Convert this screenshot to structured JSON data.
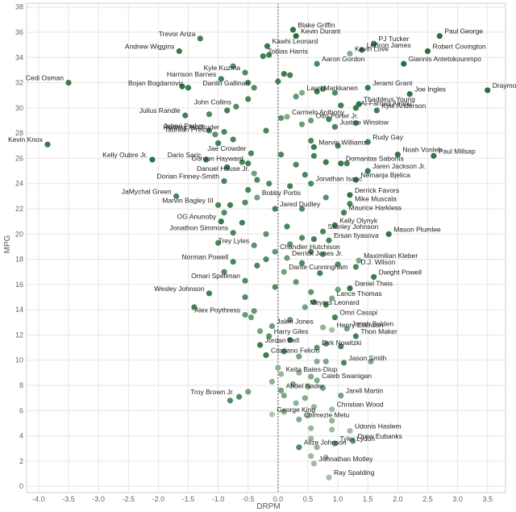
{
  "chart_data": {
    "type": "scatter",
    "title": "",
    "xlabel": "DRPM",
    "ylabel": "MPG",
    "xlim": [
      -4.2,
      3.8
    ],
    "ylim": [
      -0.5,
      38.3
    ],
    "xticks": [
      -4.0,
      -3.5,
      -3.0,
      -2.5,
      -2.0,
      -1.5,
      -1.0,
      -0.5,
      0.0,
      0.5,
      1.0,
      1.5,
      2.0,
      2.5,
      3.0,
      3.5
    ],
    "yticks": [
      0,
      2,
      4,
      6,
      8,
      10,
      12,
      14,
      16,
      18,
      20,
      22,
      24,
      26,
      28,
      30,
      32,
      34,
      36,
      38
    ],
    "xtick_labels": [
      "-4.0",
      "-3.5",
      "-3.0",
      "-2.5",
      "-2.0",
      "-1.5",
      "-1.0",
      "-0.5",
      "0.0",
      "0.5",
      "1.0",
      "1.5",
      "2.0",
      "2.5",
      "3.0",
      "3.5"
    ],
    "ytick_labels": [
      "0",
      "2",
      "4",
      "6",
      "8",
      "10",
      "12",
      "14",
      "16",
      "18",
      "20",
      "22",
      "24",
      "26",
      "28",
      "30",
      "32",
      "34",
      "36",
      "38"
    ],
    "grid": true,
    "color_scale": {
      "low": "#c8d8c0",
      "high": "#1e6a38"
    },
    "labeled_points": [
      {
        "name": "Blake Griffin",
        "x": 0.25,
        "y": 36.2,
        "c": 0.9
      },
      {
        "name": "Kevin Durant",
        "x": 0.3,
        "y": 35.7,
        "c": 0.95
      },
      {
        "name": "PJ Tucker",
        "x": 1.6,
        "y": 35.1,
        "c": 0.85
      },
      {
        "name": "Paul George",
        "x": 2.7,
        "y": 35.7,
        "c": 0.95
      },
      {
        "name": "Trevor Ariza",
        "x": -1.3,
        "y": 35.5,
        "c": 0.8
      },
      {
        "name": "Kawhi Leonard",
        "x": -0.18,
        "y": 34.9,
        "c": 0.85
      },
      {
        "name": "Kevin Love",
        "x": 1.2,
        "y": 34.3,
        "c": 0.4
      },
      {
        "name": "LeBron James",
        "x": 1.4,
        "y": 34.6,
        "c": 0.9
      },
      {
        "name": "Robert Covington",
        "x": 2.5,
        "y": 34.5,
        "c": 0.95
      },
      {
        "name": "Andrew Wiggins",
        "x": -1.65,
        "y": 34.5,
        "c": 0.85
      },
      {
        "name": "Tobias Harris",
        "x": -0.25,
        "y": 34.1,
        "c": 0.8
      },
      {
        "name": "Giannis Antetokounmpo",
        "x": 2.1,
        "y": 33.5,
        "c": 0.95
      },
      {
        "name": "Aaron Gordon",
        "x": 0.65,
        "y": 33.5,
        "c": 0.75
      },
      {
        "name": "Kyle Kuzma",
        "x": -0.55,
        "y": 32.8,
        "c": 0.7
      },
      {
        "name": "Draymond Green",
        "x": 3.5,
        "y": 31.4,
        "c": 0.95
      },
      {
        "name": "Cedi Osman",
        "x": -3.5,
        "y": 32.0,
        "c": 0.85
      },
      {
        "name": "Harrison Barnes",
        "x": -0.95,
        "y": 32.3,
        "c": 0.8
      },
      {
        "name": "Lauri Markkanen",
        "x": 0.4,
        "y": 31.2,
        "c": 0.4
      },
      {
        "name": "Bojan Bogdanovic",
        "x": -1.5,
        "y": 31.6,
        "c": 0.85
      },
      {
        "name": "Danilo Gallinari",
        "x": -0.4,
        "y": 31.6,
        "c": 0.7
      },
      {
        "name": "Jerami Grant",
        "x": 1.5,
        "y": 31.6,
        "c": 0.85
      },
      {
        "name": "Joe Ingles",
        "x": 2.2,
        "y": 31.1,
        "c": 0.9
      },
      {
        "name": "Thaddeus Young",
        "x": 1.35,
        "y": 30.3,
        "c": 0.9
      },
      {
        "name": "John Collins",
        "x": -0.7,
        "y": 30.1,
        "c": 0.7
      },
      {
        "name": "Al-Farouq Aminu",
        "x": 1.3,
        "y": 30.0,
        "c": 0.85
      },
      {
        "name": "Kyle Anderson",
        "x": 1.65,
        "y": 29.8,
        "c": 0.8
      },
      {
        "name": "Julius Randle",
        "x": -1.55,
        "y": 29.4,
        "c": 0.8
      },
      {
        "name": "Carmelo Anthony",
        "x": 0.15,
        "y": 29.3,
        "c": 0.4
      },
      {
        "name": "Otto Porter Jr.",
        "x": 0.55,
        "y": 29.0,
        "c": 0.55
      },
      {
        "name": "Jabari Parker",
        "x": -1.15,
        "y": 28.2,
        "c": 0.7
      },
      {
        "name": "Rodney McGruder",
        "x": -0.9,
        "y": 28.1,
        "c": 0.75
      },
      {
        "name": "Justise Winslow",
        "x": 0.95,
        "y": 28.5,
        "c": 0.75
      },
      {
        "name": "Taurean Prince",
        "x": -1.05,
        "y": 27.9,
        "c": 0.65
      },
      {
        "name": "Rudy Gay",
        "x": 1.5,
        "y": 27.3,
        "c": 0.8
      },
      {
        "name": "Kevin Knox",
        "x": -3.85,
        "y": 27.1,
        "c": 0.85
      },
      {
        "name": "Noah Vonleh",
        "x": 2.0,
        "y": 26.3,
        "c": 0.9
      },
      {
        "name": "Marvin Williams",
        "x": 0.6,
        "y": 26.9,
        "c": 0.85
      },
      {
        "name": "Jae Crowder",
        "x": -0.45,
        "y": 26.4,
        "c": 0.75
      },
      {
        "name": "Paul Millsap",
        "x": 2.6,
        "y": 26.2,
        "c": 0.9
      },
      {
        "name": "Domantas Sabonis",
        "x": 1.05,
        "y": 25.6,
        "c": 0.85
      },
      {
        "name": "Kelly Oubre Jr.",
        "x": -2.1,
        "y": 25.9,
        "c": 0.9
      },
      {
        "name": "Dario Saric",
        "x": -1.2,
        "y": 25.9,
        "c": 0.8
      },
      {
        "name": "Gordon Hayward",
        "x": -0.5,
        "y": 25.6,
        "c": 0.8
      },
      {
        "name": "Danuel House Jr.",
        "x": -0.4,
        "y": 24.8,
        "c": 0.5
      },
      {
        "name": "Jaren Jackson Jr.",
        "x": 1.5,
        "y": 25.0,
        "c": 0.85
      },
      {
        "name": "Dorian Finney-Smith",
        "x": -0.9,
        "y": 24.2,
        "c": 0.75
      },
      {
        "name": "Nemanja Bjelica",
        "x": 1.3,
        "y": 24.3,
        "c": 0.85
      },
      {
        "name": "Jonathan Isaac",
        "x": 0.55,
        "y": 24.0,
        "c": 0.7
      },
      {
        "name": "JaMychal Green",
        "x": -1.7,
        "y": 23.0,
        "c": 0.75
      },
      {
        "name": "Bobby Portis",
        "x": -0.35,
        "y": 22.9,
        "c": 0.5
      },
      {
        "name": "Derrick Favors",
        "x": 1.2,
        "y": 23.1,
        "c": 0.9
      },
      {
        "name": "Marvin Bagley III",
        "x": -1.0,
        "y": 22.3,
        "c": 0.75
      },
      {
        "name": "Mike Muscala",
        "x": 1.2,
        "y": 22.4,
        "c": 0.75
      },
      {
        "name": "Maurice Harkless",
        "x": 1.1,
        "y": 21.7,
        "c": 0.8
      },
      {
        "name": "Jared Dudley",
        "x": -0.05,
        "y": 22.0,
        "c": 0.8
      },
      {
        "name": "OG Anunoby",
        "x": -0.95,
        "y": 21.0,
        "c": 0.85
      },
      {
        "name": "Kelly Olynyk",
        "x": 0.95,
        "y": 20.7,
        "c": 0.85
      },
      {
        "name": "Jonathon Simmons",
        "x": -0.75,
        "y": 20.1,
        "c": 0.75
      },
      {
        "name": "Stanley Johnson",
        "x": 0.75,
        "y": 20.2,
        "c": 0.75
      },
      {
        "name": "Mason Plumlee",
        "x": 1.85,
        "y": 20.0,
        "c": 0.9
      },
      {
        "name": "Ersan Ilyasova",
        "x": 0.85,
        "y": 19.5,
        "c": 0.75
      },
      {
        "name": "Trey Lyles",
        "x": -0.4,
        "y": 19.1,
        "c": 0.65
      },
      {
        "name": "Chandler Hutchison",
        "x": -0.05,
        "y": 18.6,
        "c": 0.6
      },
      {
        "name": "Maximilian Kleber",
        "x": 1.35,
        "y": 17.9,
        "c": 0.45
      },
      {
        "name": "Norman Powell",
        "x": -0.75,
        "y": 17.8,
        "c": 0.75
      },
      {
        "name": "Derrick Jones Jr.",
        "x": 0.15,
        "y": 18.1,
        "c": 0.55
      },
      {
        "name": "D.J. Wilson",
        "x": 1.3,
        "y": 17.4,
        "c": 0.75
      },
      {
        "name": "Dante Cunningham",
        "x": 0.1,
        "y": 17.0,
        "c": 0.5
      },
      {
        "name": "Dwight Powell",
        "x": 1.6,
        "y": 16.6,
        "c": 0.85
      },
      {
        "name": "Omari Spellman",
        "x": -0.55,
        "y": 16.3,
        "c": 0.7
      },
      {
        "name": "Daniel Theis",
        "x": 1.2,
        "y": 15.7,
        "c": 0.9
      },
      {
        "name": "Wesley Johnson",
        "x": -1.15,
        "y": 15.3,
        "c": 0.8
      },
      {
        "name": "Lance Thomas",
        "x": 0.9,
        "y": 14.9,
        "c": 0.45
      },
      {
        "name": "Meyers Leonard",
        "x": 0.45,
        "y": 14.2,
        "c": 0.5
      },
      {
        "name": "Alex Poythress",
        "x": -0.55,
        "y": 13.6,
        "c": 0.55
      },
      {
        "name": "Omri Casspi",
        "x": 0.95,
        "y": 13.4,
        "c": 0.8
      },
      {
        "name": "Jalen Jones",
        "x": -0.1,
        "y": 12.7,
        "c": 0.55
      },
      {
        "name": "Henry Ellenson",
        "x": 0.9,
        "y": 12.4,
        "c": 0.2
      },
      {
        "name": "Jonah Bolden",
        "x": 1.15,
        "y": 12.5,
        "c": 0.5
      },
      {
        "name": "Harry Giles",
        "x": -0.15,
        "y": 11.9,
        "c": 0.65
      },
      {
        "name": "Thon Maker",
        "x": 1.3,
        "y": 11.9,
        "c": 0.8
      },
      {
        "name": "Jordan Bell",
        "x": -0.3,
        "y": 11.2,
        "c": 0.85
      },
      {
        "name": "Dirk Nowitzki",
        "x": 0.65,
        "y": 11.0,
        "c": 0.6
      },
      {
        "name": "Cristiano Felicio",
        "x": -0.2,
        "y": 10.4,
        "c": 0.85
      },
      {
        "name": "Jason Smith",
        "x": 1.1,
        "y": 9.8,
        "c": 0.75
      },
      {
        "name": "Keita Bates-Diop",
        "x": 0.05,
        "y": 8.9,
        "c": 0.3
      },
      {
        "name": "Caleb Swanigan",
        "x": 0.65,
        "y": 8.4,
        "c": 0.4
      },
      {
        "name": "Abdel Nader",
        "x": 0.05,
        "y": 7.6,
        "c": 0.5
      },
      {
        "name": "Troy Brown Jr.",
        "x": -0.65,
        "y": 7.1,
        "c": 0.7
      },
      {
        "name": "Jarell Martin",
        "x": 1.05,
        "y": 7.2,
        "c": 0.5
      },
      {
        "name": "George King",
        "x": -0.1,
        "y": 5.7,
        "c": 0.15
      },
      {
        "name": "Christian Wood",
        "x": 0.9,
        "y": 6.1,
        "c": 0.25
      },
      {
        "name": "Chimezie Metu",
        "x": 0.35,
        "y": 5.3,
        "c": 0.4
      },
      {
        "name": "Udonis Haslem",
        "x": 1.2,
        "y": 4.4,
        "c": 0.25
      },
      {
        "name": "Drew Eubanks",
        "x": 1.25,
        "y": 3.6,
        "c": 0.65
      },
      {
        "name": "Alize Johnson",
        "x": 0.35,
        "y": 3.1,
        "c": 0.7
      },
      {
        "name": "Tyler Lydon",
        "x": 0.95,
        "y": 3.4,
        "c": 0.65
      },
      {
        "name": "Johnathan Motley",
        "x": 0.6,
        "y": 1.8,
        "c": 0.25
      },
      {
        "name": "Ray Spalding",
        "x": 0.85,
        "y": 0.7,
        "c": 0.2
      }
    ],
    "unlabeled_points": [
      {
        "x": -0.15,
        "y": 34.2,
        "c": 0.8
      },
      {
        "x": -0.75,
        "y": 33.3,
        "c": 0.7
      },
      {
        "x": 0.1,
        "y": 32.7,
        "c": 0.85
      },
      {
        "x": 0.2,
        "y": 32.6,
        "c": 0.8
      },
      {
        "x": -0.5,
        "y": 32.0,
        "c": 0.75
      },
      {
        "x": -1.6,
        "y": 31.7,
        "c": 0.9
      },
      {
        "x": 0.0,
        "y": 32.1,
        "c": 0.8
      },
      {
        "x": 0.75,
        "y": 31.5,
        "c": 0.75
      },
      {
        "x": 0.95,
        "y": 31.2,
        "c": 0.7
      },
      {
        "x": 0.65,
        "y": 31.3,
        "c": 0.85
      },
      {
        "x": -0.5,
        "y": 30.7,
        "c": 0.75
      },
      {
        "x": 0.3,
        "y": 30.9,
        "c": 0.6
      },
      {
        "x": 1.05,
        "y": 30.2,
        "c": 0.8
      },
      {
        "x": -0.85,
        "y": 29.8,
        "c": 0.8
      },
      {
        "x": -1.15,
        "y": 29.5,
        "c": 0.7
      },
      {
        "x": 0.85,
        "y": 29.1,
        "c": 0.75
      },
      {
        "x": 0.05,
        "y": 29.2,
        "c": 0.65
      },
      {
        "x": 0.4,
        "y": 28.7,
        "c": 0.55
      },
      {
        "x": 1.3,
        "y": 28.8,
        "c": 0.7
      },
      {
        "x": -0.2,
        "y": 28.2,
        "c": 0.75
      },
      {
        "x": -0.75,
        "y": 27.5,
        "c": 0.75
      },
      {
        "x": -1.0,
        "y": 27.2,
        "c": 0.8
      },
      {
        "x": 0.55,
        "y": 27.4,
        "c": 0.75
      },
      {
        "x": 1.0,
        "y": 27.0,
        "c": 0.8
      },
      {
        "x": 0.05,
        "y": 26.3,
        "c": 0.75
      },
      {
        "x": 0.6,
        "y": 26.2,
        "c": 0.8
      },
      {
        "x": 0.8,
        "y": 25.7,
        "c": 0.85
      },
      {
        "x": -0.6,
        "y": 25.7,
        "c": 0.75
      },
      {
        "x": -0.85,
        "y": 25.3,
        "c": 0.85
      },
      {
        "x": 0.3,
        "y": 25.5,
        "c": 0.75
      },
      {
        "x": 1.15,
        "y": 25.6,
        "c": 0.75
      },
      {
        "x": 0.45,
        "y": 24.7,
        "c": 0.75
      },
      {
        "x": -0.35,
        "y": 24.3,
        "c": 0.75
      },
      {
        "x": -0.15,
        "y": 24.0,
        "c": 0.7
      },
      {
        "x": 0.2,
        "y": 23.8,
        "c": 0.8
      },
      {
        "x": -0.5,
        "y": 23.5,
        "c": 0.75
      },
      {
        "x": 0.8,
        "y": 22.9,
        "c": 0.65
      },
      {
        "x": -0.55,
        "y": 22.5,
        "c": 0.7
      },
      {
        "x": -0.8,
        "y": 22.3,
        "c": 0.8
      },
      {
        "x": 0.4,
        "y": 22.0,
        "c": 0.7
      },
      {
        "x": -0.9,
        "y": 21.7,
        "c": 0.7
      },
      {
        "x": -0.6,
        "y": 20.9,
        "c": 0.8
      },
      {
        "x": 0.15,
        "y": 20.6,
        "c": 0.75
      },
      {
        "x": -0.2,
        "y": 20.0,
        "c": 0.65
      },
      {
        "x": 0.4,
        "y": 19.7,
        "c": 0.7
      },
      {
        "x": 0.6,
        "y": 19.6,
        "c": 0.8
      },
      {
        "x": 0.2,
        "y": 19.2,
        "c": 0.6
      },
      {
        "x": -1.0,
        "y": 19.3,
        "c": 0.75
      },
      {
        "x": 0.55,
        "y": 18.6,
        "c": 0.7
      },
      {
        "x": 0.75,
        "y": 18.4,
        "c": 0.65
      },
      {
        "x": -0.2,
        "y": 18.0,
        "c": 0.7
      },
      {
        "x": 0.4,
        "y": 17.7,
        "c": 0.7
      },
      {
        "x": 1.0,
        "y": 17.6,
        "c": 0.7
      },
      {
        "x": -0.35,
        "y": 17.5,
        "c": 0.75
      },
      {
        "x": -0.9,
        "y": 17.0,
        "c": 0.7
      },
      {
        "x": 0.7,
        "y": 16.9,
        "c": 0.8
      },
      {
        "x": 0.3,
        "y": 16.2,
        "c": 0.6
      },
      {
        "x": -0.05,
        "y": 15.8,
        "c": 0.7
      },
      {
        "x": 1.0,
        "y": 15.6,
        "c": 0.5
      },
      {
        "x": 0.55,
        "y": 15.4,
        "c": 0.6
      },
      {
        "x": -0.55,
        "y": 15.0,
        "c": 0.7
      },
      {
        "x": 0.6,
        "y": 14.6,
        "c": 0.7
      },
      {
        "x": 0.8,
        "y": 14.4,
        "c": 0.8
      },
      {
        "x": -1.4,
        "y": 14.2,
        "c": 0.8
      },
      {
        "x": -0.4,
        "y": 13.9,
        "c": 0.6
      },
      {
        "x": -0.45,
        "y": 13.4,
        "c": 0.55
      },
      {
        "x": 0.2,
        "y": 13.2,
        "c": 0.6
      },
      {
        "x": 0.75,
        "y": 12.6,
        "c": 0.35
      },
      {
        "x": -0.3,
        "y": 12.3,
        "c": 0.5
      },
      {
        "x": 0.2,
        "y": 11.6,
        "c": 0.8
      },
      {
        "x": 0.8,
        "y": 11.3,
        "c": 0.55
      },
      {
        "x": 1.05,
        "y": 11.1,
        "c": 0.75
      },
      {
        "x": 0.1,
        "y": 10.7,
        "c": 0.7
      },
      {
        "x": 0.35,
        "y": 10.3,
        "c": 0.5
      },
      {
        "x": 0.8,
        "y": 9.9,
        "c": 0.45
      },
      {
        "x": 0.65,
        "y": 9.9,
        "c": 0.4
      },
      {
        "x": 1.55,
        "y": 9.9,
        "c": 0.45
      },
      {
        "x": 0.0,
        "y": 9.4,
        "c": 0.35
      },
      {
        "x": 0.35,
        "y": 9.0,
        "c": 0.3
      },
      {
        "x": 0.55,
        "y": 8.7,
        "c": 0.4
      },
      {
        "x": -0.1,
        "y": 8.3,
        "c": 0.35
      },
      {
        "x": 0.25,
        "y": 8.1,
        "c": 0.45
      },
      {
        "x": 0.5,
        "y": 7.9,
        "c": 0.4
      },
      {
        "x": 0.75,
        "y": 7.8,
        "c": 0.5
      },
      {
        "x": -0.5,
        "y": 7.5,
        "c": 0.5
      },
      {
        "x": 0.1,
        "y": 7.2,
        "c": 0.45
      },
      {
        "x": 0.45,
        "y": 7.0,
        "c": 0.4
      },
      {
        "x": -0.8,
        "y": 6.8,
        "c": 0.7
      },
      {
        "x": 0.3,
        "y": 6.6,
        "c": 0.35
      },
      {
        "x": 0.6,
        "y": 6.3,
        "c": 0.3
      },
      {
        "x": 0.1,
        "y": 5.9,
        "c": 0.35
      },
      {
        "x": 0.5,
        "y": 5.6,
        "c": 0.3
      },
      {
        "x": 0.9,
        "y": 5.2,
        "c": 0.3
      },
      {
        "x": 0.55,
        "y": 4.6,
        "c": 0.3
      },
      {
        "x": 0.9,
        "y": 4.5,
        "c": 0.25
      },
      {
        "x": 0.55,
        "y": 3.8,
        "c": 0.25
      },
      {
        "x": 0.65,
        "y": 3.1,
        "c": 0.3
      },
      {
        "x": 0.55,
        "y": 2.4,
        "c": 0.25
      },
      {
        "x": 0.8,
        "y": 2.3,
        "c": 0.2
      }
    ]
  }
}
